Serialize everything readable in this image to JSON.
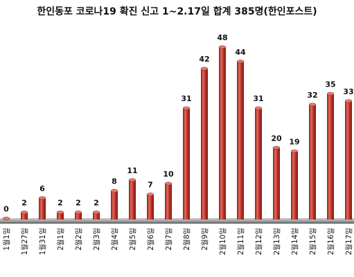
{
  "chart_data": {
    "type": "bar",
    "title": "한인동포 코로나19 확진 신고 1~2.17일 합계 385명(한인포스트)",
    "categories": [
      "1월1일",
      "1월27일",
      "1월31일",
      "2월1일",
      "2월2일",
      "2월3일",
      "2월4일",
      "2월5일",
      "2월6일",
      "2월7일",
      "2월8일",
      "2월9일",
      "2월10일",
      "2월11일",
      "2월12일",
      "2월13일",
      "2월14일",
      "2월15일",
      "2월16일",
      "2월17일"
    ],
    "values": [
      0,
      2,
      6,
      2,
      2,
      2,
      8,
      11,
      7,
      10,
      31,
      42,
      48,
      44,
      31,
      20,
      19,
      32,
      35,
      33
    ],
    "ylim": [
      0,
      48
    ],
    "grid": false,
    "legend": "none",
    "colors": {
      "bar": "#c0392b",
      "bar_dark": "#7a1712",
      "bar_light": "#e8766c",
      "floor": "#b8b8b8"
    }
  }
}
